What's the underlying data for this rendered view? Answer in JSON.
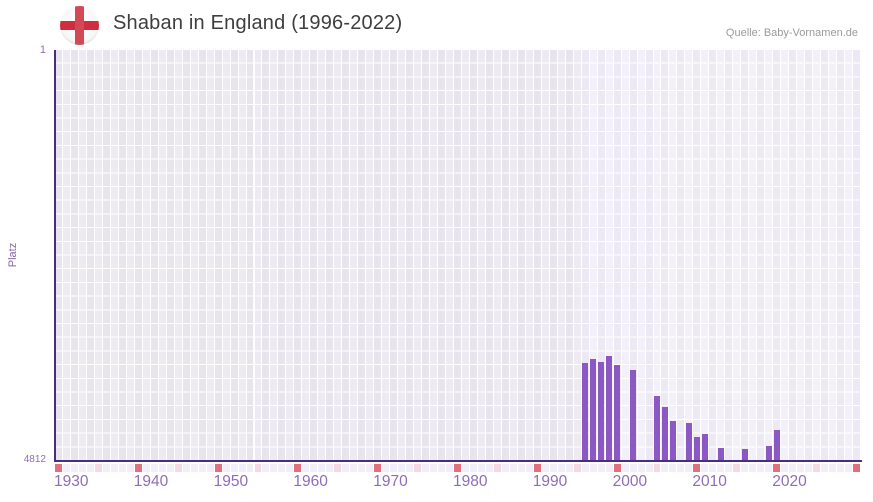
{
  "header": {
    "title": "Shaban in England (1996-2022)",
    "flag_icon": "england-flag",
    "source": "Quelle: Baby-Vornamen.de"
  },
  "chart_data": {
    "type": "bar",
    "title": "Shaban in England (1996-2022)",
    "xlabel": "",
    "ylabel": "Platz",
    "y_axis": {
      "min": 1,
      "max": 4812,
      "inverted": true,
      "top_tick_label": "1",
      "bottom_tick_label": "4812"
    },
    "x_axis": {
      "start_year": 1930,
      "end_year": 2030,
      "data_start_year": 1996,
      "tick_labels": [
        "1930",
        "1940",
        "1950",
        "1960",
        "1970",
        "1980",
        "1990",
        "2000",
        "2010",
        "2020"
      ],
      "decade_marker_interval": 10,
      "half_decade_marker_interval": 5
    },
    "series": [
      {
        "name": "Platz",
        "points": [
          {
            "year": 1996,
            "rank": 3665
          },
          {
            "year": 1997,
            "rank": 3620
          },
          {
            "year": 1998,
            "rank": 3653
          },
          {
            "year": 1999,
            "rank": 3584
          },
          {
            "year": 2000,
            "rank": 3690
          },
          {
            "year": 2002,
            "rank": 3748
          },
          {
            "year": 2005,
            "rank": 4051
          },
          {
            "year": 2006,
            "rank": 4180
          },
          {
            "year": 2007,
            "rank": 4343
          },
          {
            "year": 2009,
            "rank": 4367
          },
          {
            "year": 2010,
            "rank": 4530
          },
          {
            "year": 2011,
            "rank": 4496
          },
          {
            "year": 2013,
            "rank": 4660
          },
          {
            "year": 2016,
            "rank": 4666
          },
          {
            "year": 2019,
            "rank": 4637
          },
          {
            "year": 2020,
            "rank": 4449
          }
        ]
      }
    ],
    "grid": true,
    "legend": null,
    "colors": {
      "bar": "#8c59c4",
      "axis_line": "#4b2c83",
      "tick_label": "#8f6cba",
      "decade_cell": "#e0707b",
      "half_decade_cell": "#f5d9e2",
      "strip_cell": "#f2eef7",
      "col_pre_even": "#e7e4ed",
      "col_pre_odd": "#edeaf2",
      "col_data_even": "#ece8f4",
      "col_data_odd": "#f3f0f9",
      "flag_cross": "#cd2f3e"
    }
  }
}
